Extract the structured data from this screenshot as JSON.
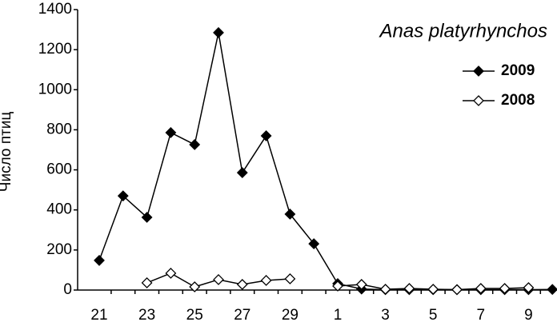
{
  "chart_data": {
    "type": "line",
    "title": "Anas platyrhynchos",
    "y_label": "Число птиц",
    "categories": [
      "21",
      null,
      "23",
      null,
      "25",
      null,
      "27",
      null,
      "29",
      null,
      "1",
      null,
      "3",
      null,
      "5",
      null,
      "7",
      null,
      "9",
      null
    ],
    "series": [
      {
        "name": "2009",
        "color": "#000000",
        "marker": "filled-diamond",
        "values": [
          148,
          470,
          363,
          786,
          726,
          1285,
          586,
          770,
          379,
          231,
          32,
          5,
          2,
          2,
          2,
          2,
          2,
          2,
          2,
          3
        ]
      },
      {
        "name": "2008",
        "color": "#000000",
        "marker": "open-diamond",
        "values": [
          null,
          null,
          36,
          84,
          16,
          52,
          28,
          48,
          56,
          null,
          20,
          28,
          4,
          8,
          4,
          2,
          8,
          8,
          12,
          null
        ]
      }
    ],
    "ylim": [
      0,
      1400
    ],
    "yticks": [
      0,
      200,
      400,
      600,
      800,
      1000,
      1200,
      1400
    ],
    "legend": "upper-right"
  }
}
